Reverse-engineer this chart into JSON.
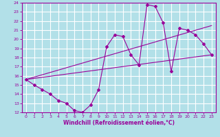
{
  "xlabel": "Windchill (Refroidissement éolien,°C)",
  "background_color": "#b2e0e8",
  "grid_color": "#ffffff",
  "line_color": "#990099",
  "xlim": [
    -0.5,
    23.5
  ],
  "ylim": [
    12,
    24
  ],
  "yticks": [
    12,
    13,
    14,
    15,
    16,
    17,
    18,
    19,
    20,
    21,
    22,
    23,
    24
  ],
  "xticks": [
    0,
    1,
    2,
    3,
    4,
    5,
    6,
    7,
    8,
    9,
    10,
    11,
    12,
    13,
    14,
    15,
    16,
    17,
    18,
    19,
    20,
    21,
    22,
    23
  ],
  "curve_x": [
    0,
    1,
    2,
    3,
    4,
    5,
    6,
    7,
    8,
    9,
    10,
    11,
    12,
    13,
    14,
    15,
    16,
    17,
    18,
    19,
    20,
    21,
    22,
    23
  ],
  "curve_y": [
    15.6,
    15.0,
    14.5,
    14.0,
    13.3,
    13.0,
    12.2,
    12.0,
    12.8,
    14.5,
    19.2,
    20.5,
    20.3,
    18.3,
    17.2,
    23.8,
    23.6,
    21.8,
    16.5,
    21.2,
    21.0,
    20.5,
    19.5,
    18.3
  ],
  "trend1_x": [
    0,
    23
  ],
  "trend1_y": [
    15.6,
    18.3
  ],
  "trend2_x": [
    0,
    23
  ],
  "trend2_y": [
    15.6,
    21.5
  ]
}
